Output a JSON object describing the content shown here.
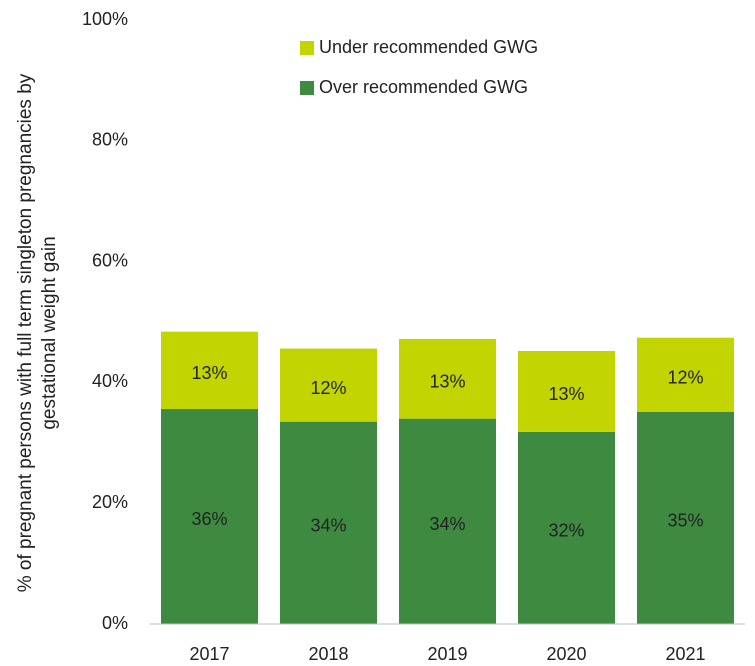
{
  "chart_data": {
    "type": "stacked_bar",
    "y_label": "% of pregnant persons with full term singleton pregnancies by gestational weight gain",
    "categories": [
      "2017",
      "2018",
      "2019",
      "2020",
      "2021"
    ],
    "series": [
      {
        "name": "Over recommended GWG",
        "color": "#3e8a41",
        "values": [
          35.6,
          33.5,
          34.0,
          31.8,
          35.1
        ],
        "value_labels": [
          "36%",
          "34%",
          "34%",
          "32%",
          "35%"
        ]
      },
      {
        "name": "Under recommended GWG",
        "color": "#c2d500",
        "values": [
          12.8,
          12.1,
          13.2,
          13.4,
          12.3
        ],
        "value_labels": [
          "13%",
          "12%",
          "13%",
          "13%",
          "12%"
        ]
      }
    ],
    "ylim": [
      0,
      100
    ],
    "yticks": [
      {
        "value": 0,
        "label": "0%"
      },
      {
        "value": 20,
        "label": "20%"
      },
      {
        "value": 40,
        "label": "40%"
      },
      {
        "value": 60,
        "label": "60%"
      },
      {
        "value": 80,
        "label": "80%"
      },
      {
        "value": 100,
        "label": "100%"
      }
    ],
    "grid": false,
    "legend": "top"
  }
}
